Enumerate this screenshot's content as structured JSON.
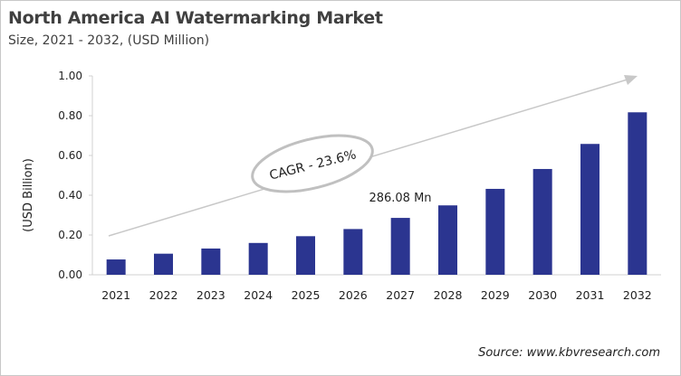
{
  "chart_data": {
    "type": "bar",
    "title": "North America AI Watermarking Market",
    "subtitle": "Size, 2021 - 2032, (USD Million)",
    "ylabel": "(USD Billion)",
    "xlabel": "",
    "categories": [
      "2021",
      "2022",
      "2023",
      "2024",
      "2025",
      "2026",
      "2027",
      "2028",
      "2029",
      "2030",
      "2031",
      "2032"
    ],
    "values": [
      0.077,
      0.106,
      0.132,
      0.16,
      0.194,
      0.23,
      0.286,
      0.349,
      0.432,
      0.532,
      0.658,
      0.817
    ],
    "ylim": [
      0,
      1.0
    ],
    "yticks": [
      "0.00",
      "0.20",
      "0.40",
      "0.60",
      "0.80",
      "1.00"
    ],
    "grid": false,
    "bar_color": "#2b3590",
    "annotations": {
      "cagr": "CAGR - 23.6%",
      "value_label": "286.08 Mn"
    },
    "source": "Source: www.kbvresearch.com"
  }
}
